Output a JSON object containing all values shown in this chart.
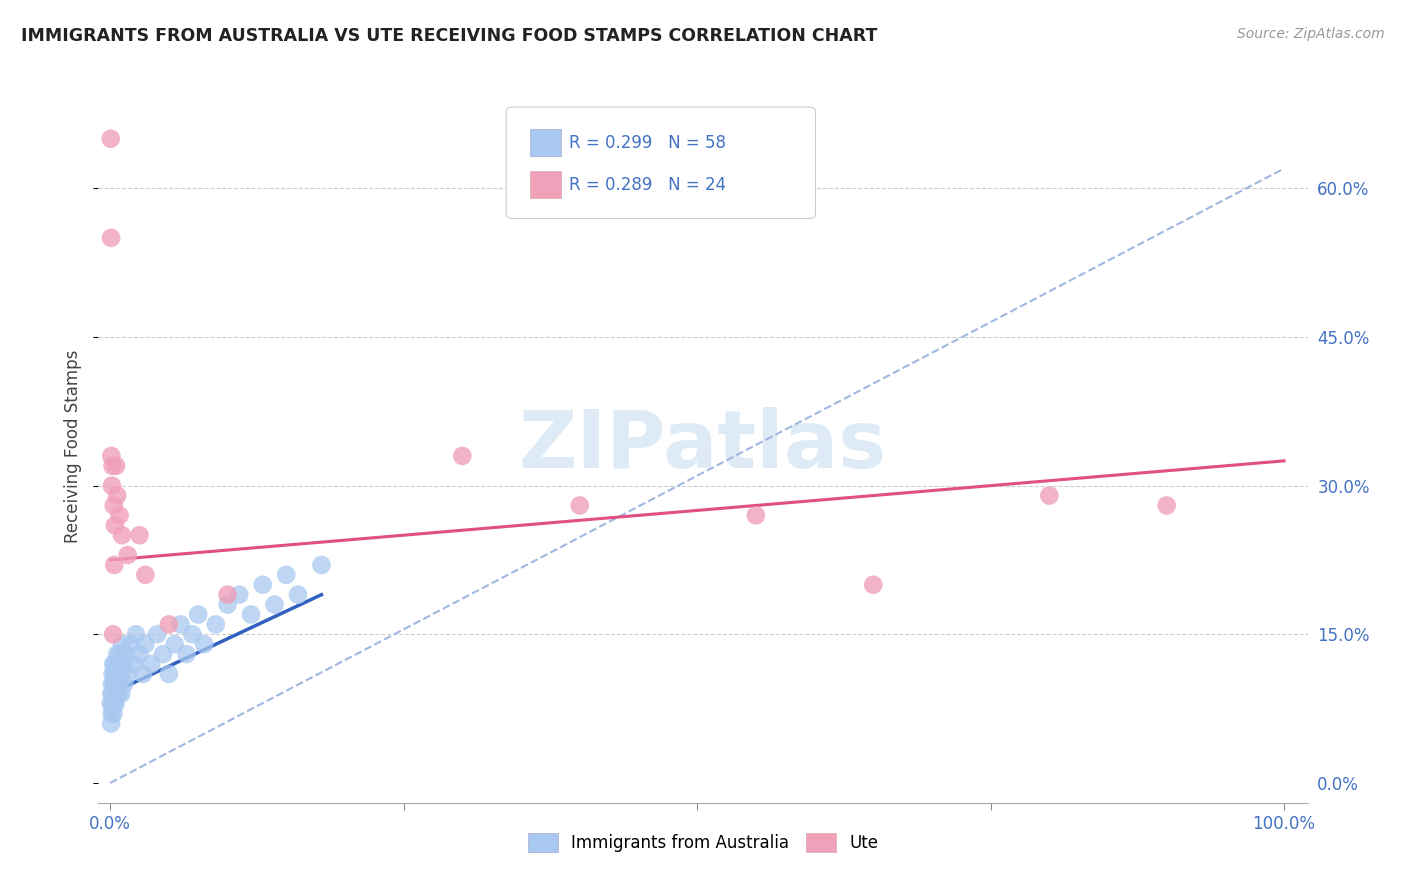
{
  "title": "IMMIGRANTS FROM AUSTRALIA VS UTE RECEIVING FOOD STAMPS CORRELATION CHART",
  "source": "Source: ZipAtlas.com",
  "ylabel": "Receiving Food Stamps",
  "blue_color": "#a8c8f0",
  "pink_color": "#f0a0b8",
  "trend_line_blue_color": "#3060c0",
  "trend_line_pink_color": "#e05080",
  "dashed_line_color": "#a0b8e0",
  "watermark_color": "#c8dff0",
  "blue_scatter_x": [
    0.05,
    0.08,
    0.1,
    0.12,
    0.15,
    0.18,
    0.2,
    0.22,
    0.25,
    0.28,
    0.3,
    0.32,
    0.35,
    0.38,
    0.4,
    0.42,
    0.45,
    0.48,
    0.5,
    0.55,
    0.6,
    0.65,
    0.7,
    0.75,
    0.8,
    0.85,
    0.9,
    0.95,
    1.0,
    1.1,
    1.2,
    1.3,
    1.5,
    1.7,
    2.0,
    2.2,
    2.5,
    2.8,
    3.0,
    3.5,
    4.0,
    4.5,
    5.0,
    5.5,
    6.0,
    6.5,
    7.0,
    7.5,
    8.0,
    9.0,
    10.0,
    11.0,
    12.0,
    13.0,
    14.0,
    15.0,
    16.0,
    18.0
  ],
  "blue_scatter_y": [
    8.0,
    6.0,
    9.0,
    7.0,
    10.0,
    8.0,
    11.0,
    9.0,
    12.0,
    7.0,
    10.0,
    8.0,
    11.0,
    9.0,
    12.0,
    10.0,
    8.0,
    11.0,
    9.0,
    10.0,
    13.0,
    11.0,
    9.0,
    12.0,
    10.0,
    13.0,
    11.0,
    9.0,
    14.0,
    12.0,
    10.0,
    13.0,
    11.0,
    14.0,
    12.0,
    15.0,
    13.0,
    11.0,
    14.0,
    12.0,
    15.0,
    13.0,
    11.0,
    14.0,
    16.0,
    13.0,
    15.0,
    17.0,
    14.0,
    16.0,
    18.0,
    19.0,
    17.0,
    20.0,
    18.0,
    21.0,
    19.0,
    22.0
  ],
  "pink_scatter_x": [
    0.05,
    0.08,
    0.1,
    0.15,
    0.2,
    0.3,
    0.4,
    0.5,
    0.6,
    0.8,
    1.0,
    1.5,
    2.5,
    5.0,
    30.0,
    40.0,
    55.0,
    65.0,
    80.0,
    90.0,
    0.25,
    0.35,
    3.0,
    10.0
  ],
  "pink_scatter_y": [
    65.0,
    55.0,
    33.0,
    30.0,
    32.0,
    28.0,
    26.0,
    32.0,
    29.0,
    27.0,
    25.0,
    23.0,
    25.0,
    16.0,
    33.0,
    28.0,
    27.0,
    20.0,
    29.0,
    28.0,
    15.0,
    22.0,
    21.0,
    19.0
  ],
  "blue_trend_x": [
    0.0,
    18.0
  ],
  "blue_trend_y": [
    9.0,
    19.0
  ],
  "pink_trend_x": [
    0.0,
    100.0
  ],
  "pink_trend_y": [
    22.5,
    32.5
  ],
  "dashed_trend_x": [
    0.0,
    100.0
  ],
  "dashed_trend_y": [
    0.0,
    62.0
  ],
  "ytick_vals": [
    0,
    15,
    30,
    45,
    60
  ],
  "ytick_labels": [
    "0.0%",
    "15.0%",
    "30.0%",
    "45.0%",
    "60.0%"
  ],
  "xtick_vals": [
    0,
    25,
    50,
    75,
    100
  ],
  "xtick_labels": [
    "0.0%",
    "",
    "",
    "",
    "100.0%"
  ],
  "xlim": [
    -1,
    102
  ],
  "ylim": [
    -2,
    70
  ],
  "legend_blue_text": "R = 0.299   N = 58",
  "legend_pink_text": "R = 0.289   N = 24",
  "bottom_legend_blue": "Immigrants from Australia",
  "bottom_legend_pink": "Ute",
  "watermark": "ZIPatlas"
}
